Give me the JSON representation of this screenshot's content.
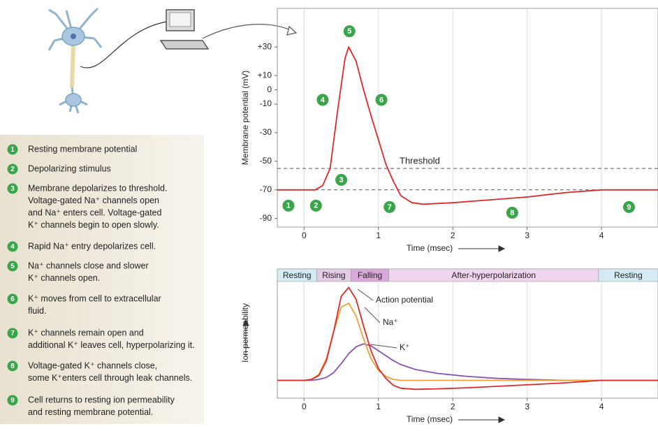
{
  "steps": [
    {
      "num": 1,
      "lines": [
        "Resting membrane potential"
      ]
    },
    {
      "num": 2,
      "lines": [
        "Depolarizing stimulus"
      ]
    },
    {
      "num": 3,
      "lines": [
        "Membrane depolarizes to threshold.",
        "Voltage-gated Na⁺ channels open",
        "and Na⁺ enters cell. Voltage-gated",
        "K⁺ channels begin to open slowly."
      ]
    },
    {
      "num": 4,
      "lines": [
        "Rapid Na⁺ entry depolarizes cell."
      ]
    },
    {
      "num": 5,
      "lines": [
        "Na⁺ channels close and slower",
        "K⁺ channels open."
      ]
    },
    {
      "num": 6,
      "lines": [
        "K⁺ moves from cell to extracellular",
        "fluid."
      ]
    },
    {
      "num": 7,
      "lines": [
        "K⁺ channels remain open and",
        "additional K⁺ leaves cell, hyperpolarizing it."
      ]
    },
    {
      "num": 8,
      "lines": [
        "Voltage-gated K⁺ channels close,",
        "some K⁺enters cell through leak channels."
      ]
    },
    {
      "num": 9,
      "lines": [
        "Cell returns to resting ion permeability",
        "and resting membrane potential."
      ]
    }
  ],
  "chart_data": [
    {
      "type": "line",
      "x_label": "Time (msec)",
      "y_label": "Membrane potential (mV)",
      "xlim": [
        -0.36,
        4.76
      ],
      "ylim": [
        -96,
        57
      ],
      "xticks": [
        0,
        1,
        2,
        3,
        4
      ],
      "yticks": [
        {
          "value": 30,
          "label": "+30"
        },
        {
          "value": 10,
          "label": "+10"
        },
        0,
        -10,
        -30,
        -50,
        -70,
        -90
      ],
      "grid": "x",
      "x": [
        -0.36,
        0,
        0.15,
        0.25,
        0.35,
        0.45,
        0.55,
        0.6,
        0.7,
        0.8,
        0.9,
        1.0,
        1.1,
        1.2,
        1.3,
        1.45,
        1.6,
        2,
        2.5,
        3,
        3.5,
        4,
        4.76
      ],
      "series": [
        {
          "color": "#e0282a",
          "values": [
            -70,
            -70,
            -70,
            -67,
            -55,
            -15,
            22,
            30,
            20,
            0,
            -18,
            -35,
            -52,
            -64,
            -74,
            -79,
            -80,
            -79,
            -77,
            -75,
            -72,
            -70,
            -70
          ]
        }
      ],
      "reference_lines": [
        {
          "y": -55,
          "label": "Threshold"
        },
        {
          "y": -70
        }
      ],
      "markers": [
        {
          "num": 1,
          "x": -0.21,
          "y": -81
        },
        {
          "num": 2,
          "x": 0.16,
          "y": -81
        },
        {
          "num": 3,
          "x": 0.5,
          "y": -63
        },
        {
          "num": 4,
          "x": 0.25,
          "y": -7
        },
        {
          "num": 5,
          "x": 0.61,
          "y": 41
        },
        {
          "num": 6,
          "x": 1.04,
          "y": -7
        },
        {
          "num": 7,
          "x": 1.15,
          "y": -82
        },
        {
          "num": 8,
          "x": 2.8,
          "y": -86
        },
        {
          "num": 9,
          "x": 4.37,
          "y": -82
        }
      ]
    },
    {
      "type": "line",
      "x_label": "Time (msec)",
      "y_label": "Ion permeability",
      "xlim": [
        -0.36,
        4.76
      ],
      "ylim": [
        -0.18,
        1
      ],
      "xticks": [
        0,
        1,
        2,
        3,
        4
      ],
      "grid": "x",
      "phases": [
        {
          "label": "Resting",
          "start": -0.36,
          "end": 0.17,
          "color": "#d3ecf4"
        },
        {
          "label": "Rising",
          "start": 0.17,
          "end": 0.63,
          "color": "#e4cbe6"
        },
        {
          "label": "Falling",
          "start": 0.63,
          "end": 1.14,
          "color": "#d9a9d9"
        },
        {
          "label": "After-hyperpolarization",
          "start": 1.14,
          "end": 3.96,
          "color": "#efd6ee"
        },
        {
          "label": "Resting",
          "start": 3.96,
          "end": 4.76,
          "color": "#d3ecf4"
        }
      ],
      "x": [
        -0.36,
        0,
        0.1,
        0.2,
        0.3,
        0.4,
        0.5,
        0.6,
        0.7,
        0.8,
        0.9,
        1.0,
        1.1,
        1.2,
        1.3,
        1.5,
        1.8,
        2.2,
        2.6,
        3.0,
        3.5,
        4.0,
        4.76
      ],
      "series": [
        {
          "name": "K⁺",
          "color": "#8a52b2",
          "values": [
            0,
            0,
            0,
            0.01,
            0.03,
            0.08,
            0.17,
            0.27,
            0.34,
            0.37,
            0.35,
            0.3,
            0.25,
            0.2,
            0.16,
            0.11,
            0.07,
            0.04,
            0.02,
            0.01,
            0,
            0,
            0
          ]
        },
        {
          "name": "Na⁺",
          "color": "#f0a035",
          "values": [
            0,
            0,
            0.01,
            0.06,
            0.22,
            0.5,
            0.74,
            0.78,
            0.65,
            0.42,
            0.22,
            0.1,
            0.04,
            0.01,
            0,
            0,
            0,
            0,
            0,
            0,
            0,
            0,
            0
          ]
        },
        {
          "name": "Action potential",
          "color": "#e0282a",
          "values": [
            0,
            0,
            0.01,
            0.05,
            0.2,
            0.5,
            0.85,
            0.94,
            0.82,
            0.55,
            0.3,
            0.12,
            0.02,
            -0.05,
            -0.08,
            -0.09,
            -0.085,
            -0.075,
            -0.06,
            -0.045,
            -0.025,
            0,
            0
          ]
        }
      ]
    }
  ]
}
